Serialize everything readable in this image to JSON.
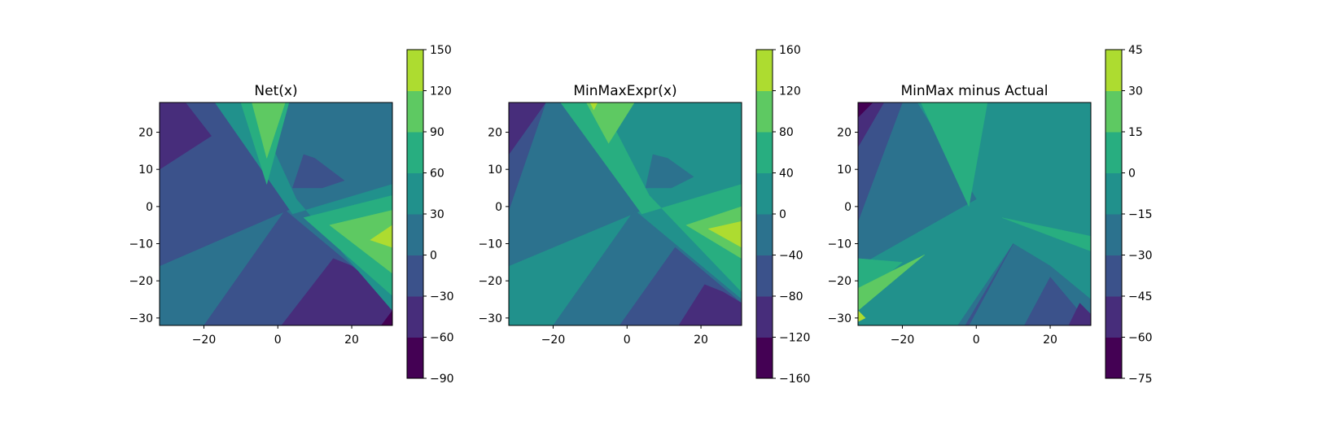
{
  "chart_data": [
    {
      "type": "heatmap",
      "title": "Net(x)",
      "xlabel": "",
      "ylabel": "",
      "xlim": [
        -32,
        31
      ],
      "ylim": [
        -32,
        28
      ],
      "xticks": [
        -20,
        0,
        20
      ],
      "yticks": [
        20,
        10,
        0,
        -10,
        -20,
        -30
      ],
      "colorbar": {
        "levels": [
          -90,
          -60,
          -30,
          0,
          30,
          60,
          90,
          120,
          150
        ],
        "ticks": [
          "150",
          "120",
          "90",
          "60",
          "30",
          "0",
          "−30",
          "−60",
          "−90"
        ]
      },
      "regions": [
        {
          "band": 3,
          "points": [
            [
              -32,
              28
            ],
            [
              31,
              28
            ],
            [
              31,
              -32
            ],
            [
              -32,
              -32
            ]
          ]
        },
        {
          "band": 2,
          "points": [
            [
              -32,
              28
            ],
            [
              -17,
              28
            ],
            [
              5,
              0
            ],
            [
              -32,
              -16
            ]
          ]
        },
        {
          "band": 1,
          "points": [
            [
              -32,
              28
            ],
            [
              -25,
              28
            ],
            [
              -18,
              19
            ],
            [
              -32,
              10
            ]
          ]
        },
        {
          "band": 2,
          "points": [
            [
              -20,
              -32
            ],
            [
              2,
              -1
            ],
            [
              31,
              -25
            ],
            [
              31,
              -32
            ]
          ]
        },
        {
          "band": 1,
          "points": [
            [
              1,
              -32
            ],
            [
              15,
              -14
            ],
            [
              20,
              -16
            ],
            [
              31,
              -25
            ],
            [
              31,
              -32
            ]
          ]
        },
        {
          "band": 0,
          "points": [
            [
              28,
              -32
            ],
            [
              31,
              -28
            ],
            [
              31,
              -32
            ]
          ]
        },
        {
          "band": 4,
          "points": [
            [
              -17,
              28
            ],
            [
              -7,
              28
            ],
            [
              5,
              2
            ],
            [
              31,
              -28
            ],
            [
              31,
              6
            ],
            [
              4,
              -2
            ]
          ]
        },
        {
          "band": 5,
          "points": [
            [
              -10,
              28
            ],
            [
              3,
              28
            ],
            [
              -3,
              6
            ]
          ]
        },
        {
          "band": 5,
          "points": [
            [
              7,
              -3
            ],
            [
              31,
              3
            ],
            [
              31,
              -24
            ]
          ]
        },
        {
          "band": 6,
          "points": [
            [
              -7,
              28
            ],
            [
              2,
              28
            ],
            [
              -3,
              13
            ]
          ]
        },
        {
          "band": 6,
          "points": [
            [
              14,
              -5
            ],
            [
              31,
              -1
            ],
            [
              31,
              -18
            ]
          ]
        },
        {
          "band": 7,
          "points": [
            [
              25,
              -9
            ],
            [
              31,
              -5
            ],
            [
              31,
              -11
            ]
          ]
        },
        {
          "band": 2,
          "points": [
            [
              4,
              5
            ],
            [
              7,
              14
            ],
            [
              10,
              13
            ],
            [
              18,
              7
            ],
            [
              12,
              5
            ]
          ]
        }
      ]
    },
    {
      "type": "heatmap",
      "title": "MinMaxExpr(x)",
      "xlabel": "",
      "ylabel": "",
      "xlim": [
        -32,
        31
      ],
      "ylim": [
        -32,
        28
      ],
      "xticks": [
        -20,
        0,
        20
      ],
      "yticks": [
        20,
        10,
        0,
        -10,
        -20,
        -30
      ],
      "colorbar": {
        "levels": [
          -160,
          -120,
          -80,
          -40,
          0,
          40,
          80,
          120,
          160
        ],
        "ticks": [
          "160",
          "120",
          "80",
          "40",
          "0",
          "−40",
          "−80",
          "−120",
          "−160"
        ]
      },
      "regions": [
        {
          "band": 4,
          "points": [
            [
              -32,
              28
            ],
            [
              31,
              28
            ],
            [
              31,
              -32
            ],
            [
              -32,
              -32
            ]
          ]
        },
        {
          "band": 3,
          "points": [
            [
              -32,
              28
            ],
            [
              -18,
              28
            ],
            [
              4,
              -1
            ],
            [
              -32,
              -16
            ]
          ]
        },
        {
          "band": 2,
          "points": [
            [
              -32,
              28
            ],
            [
              -22,
              28
            ],
            [
              -32,
              -1
            ]
          ]
        },
        {
          "band": 1,
          "points": [
            [
              -32,
              28
            ],
            [
              -22,
              28
            ],
            [
              -32,
              14
            ]
          ]
        },
        {
          "band": 3,
          "points": [
            [
              -20,
              -32
            ],
            [
              2,
              -1
            ],
            [
              31,
              -25
            ],
            [
              31,
              -32
            ]
          ]
        },
        {
          "band": 2,
          "points": [
            [
              -2,
              -32
            ],
            [
              13,
              -11
            ],
            [
              31,
              -26
            ],
            [
              31,
              -32
            ]
          ]
        },
        {
          "band": 1,
          "points": [
            [
              14,
              -32
            ],
            [
              21,
              -21
            ],
            [
              26,
              -23
            ],
            [
              31,
              -26
            ],
            [
              31,
              -32
            ]
          ]
        },
        {
          "band": 5,
          "points": [
            [
              -18,
              28
            ],
            [
              -7,
              28
            ],
            [
              6,
              3
            ],
            [
              31,
              -23
            ],
            [
              31,
              6
            ],
            [
              4,
              -2
            ]
          ]
        },
        {
          "band": 6,
          "points": [
            [
              -11,
              28
            ],
            [
              2,
              28
            ],
            [
              -5,
              17
            ]
          ]
        },
        {
          "band": 6,
          "points": [
            [
              16,
              -5
            ],
            [
              31,
              0
            ],
            [
              31,
              -14
            ]
          ]
        },
        {
          "band": 7,
          "points": [
            [
              -10,
              28
            ],
            [
              -8,
              28
            ],
            [
              -9,
              26
            ]
          ]
        },
        {
          "band": 7,
          "points": [
            [
              22,
              -6
            ],
            [
              31,
              -4
            ],
            [
              31,
              -11
            ]
          ]
        },
        {
          "band": 3,
          "points": [
            [
              5,
              5
            ],
            [
              7,
              14
            ],
            [
              11,
              13
            ],
            [
              18,
              8
            ],
            [
              12,
              5
            ]
          ]
        }
      ]
    },
    {
      "type": "heatmap",
      "title": "MinMax minus Actual",
      "xlabel": "",
      "ylabel": "",
      "xlim": [
        -32,
        31
      ],
      "ylim": [
        -32,
        28
      ],
      "xticks": [
        -20,
        0,
        20
      ],
      "yticks": [
        20,
        10,
        0,
        -10,
        -20,
        -30
      ],
      "colorbar": {
        "levels": [
          -75,
          -60,
          -45,
          -30,
          -15,
          0,
          15,
          30,
          45
        ],
        "ticks": [
          "45",
          "30",
          "15",
          "0",
          "−15",
          "−30",
          "−45",
          "−60",
          "−75"
        ]
      },
      "regions": [
        {
          "band": 4,
          "points": [
            [
              -32,
              28
            ],
            [
              31,
              28
            ],
            [
              31,
              -32
            ],
            [
              -32,
              -32
            ]
          ]
        },
        {
          "band": 3,
          "points": [
            [
              -32,
              28
            ],
            [
              -16,
              28
            ],
            [
              0,
              2
            ],
            [
              -32,
              -16
            ]
          ]
        },
        {
          "band": 2,
          "points": [
            [
              -32,
              28
            ],
            [
              -20,
              28
            ],
            [
              -32,
              -4
            ]
          ]
        },
        {
          "band": 1,
          "points": [
            [
              -32,
              28
            ],
            [
              -25,
              28
            ],
            [
              -32,
              16
            ]
          ]
        },
        {
          "band": 0,
          "points": [
            [
              -32,
              28
            ],
            [
              -28,
              28
            ],
            [
              -32,
              24
            ]
          ]
        },
        {
          "band": 5,
          "points": [
            [
              -15,
              28
            ],
            [
              3,
              28
            ],
            [
              -2,
              0
            ]
          ]
        },
        {
          "band": 5,
          "points": [
            [
              -32,
              -14
            ],
            [
              -20,
              -15
            ],
            [
              -32,
              -25
            ]
          ]
        },
        {
          "band": 6,
          "points": [
            [
              -32,
              -22
            ],
            [
              -14,
              -13
            ],
            [
              -32,
              -28
            ]
          ]
        },
        {
          "band": 7,
          "points": [
            [
              -32,
              -28
            ],
            [
              -30,
              -30
            ],
            [
              -32,
              -31
            ]
          ]
        },
        {
          "band": 3,
          "points": [
            [
              -5,
              -32
            ],
            [
              10,
              -10
            ],
            [
              20,
              -16
            ],
            [
              31,
              -25
            ],
            [
              31,
              -32
            ]
          ]
        },
        {
          "band": 2,
          "points": [
            [
              -3,
              -32
            ],
            [
              10,
              -10
            ],
            [
              -2,
              -32
            ]
          ]
        },
        {
          "band": 2,
          "points": [
            [
              13,
              -32
            ],
            [
              20,
              -19
            ],
            [
              31,
              -32
            ]
          ]
        },
        {
          "band": 1,
          "points": [
            [
              25,
              -32
            ],
            [
              28,
              -26
            ],
            [
              31,
              -29
            ],
            [
              31,
              -32
            ]
          ]
        },
        {
          "band": 5,
          "points": [
            [
              7,
              -3
            ],
            [
              31,
              -8
            ],
            [
              31,
              -12
            ]
          ]
        }
      ]
    }
  ]
}
